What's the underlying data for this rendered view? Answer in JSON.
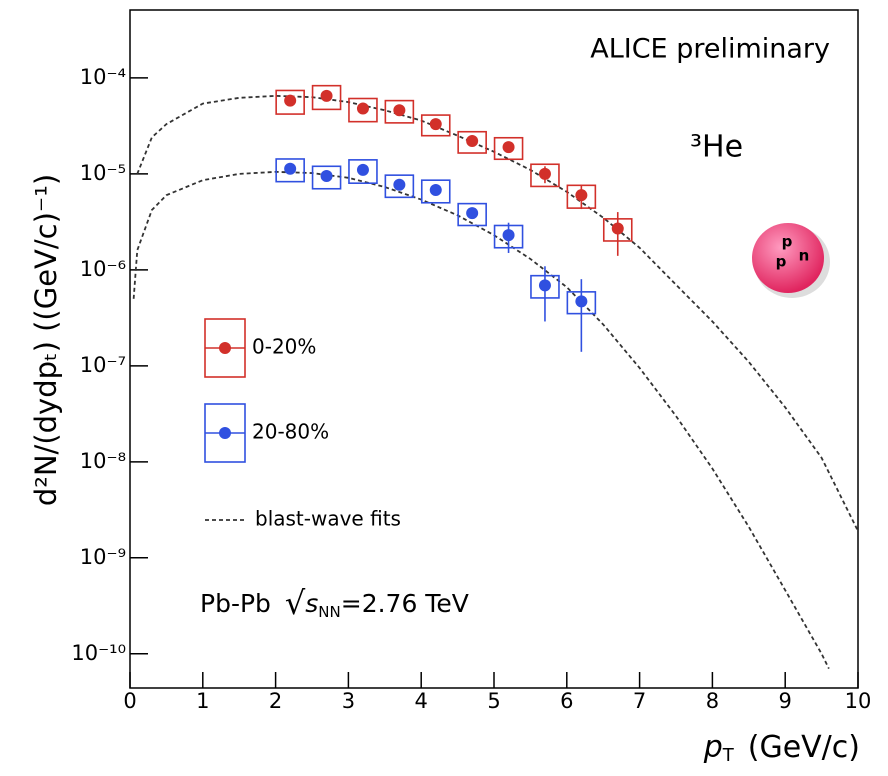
{
  "chart_data": {
    "type": "scatter",
    "annotation": "ALICE preliminary",
    "particle": "³He",
    "collision": {
      "system": "Pb-Pb",
      "sqrt_symbol": "√",
      "s": "s",
      "subscript": "NN",
      "energy": "=2.76 TeV"
    },
    "nucleus_labels": [
      "p",
      "p",
      "n"
    ],
    "x_label": {
      "main": "p",
      "sub": "T",
      "unit": "(GeV/c)"
    },
    "y_label": "d²N/(dydpₜ) ((GeV/c)⁻¹)",
    "log_y": true,
    "xlim": [
      0,
      10
    ],
    "xticks": [
      0,
      1,
      2,
      3,
      4,
      5,
      6,
      7,
      8,
      9,
      10
    ],
    "ylim": [
      4.4e-11,
      0.00051
    ],
    "yticks": [
      {
        "value": 1e-10,
        "label": "10⁻¹⁰"
      },
      {
        "value": 1e-09,
        "label": "10⁻⁹"
      },
      {
        "value": 1e-08,
        "label": "10⁻⁸"
      },
      {
        "value": 1e-07,
        "label": "10⁻⁷"
      },
      {
        "value": 1e-06,
        "label": "10⁻⁶"
      },
      {
        "value": 1e-05,
        "label": "10⁻⁵"
      },
      {
        "value": 0.0001,
        "label": "10⁻⁴"
      }
    ],
    "series": [
      {
        "name": "0-20%",
        "color": "#d2302a",
        "x": [
          2.2,
          2.7,
          3.2,
          3.7,
          4.2,
          4.7,
          5.2,
          5.7,
          6.2,
          6.7
        ],
        "values": [
          5.8e-05,
          6.5e-05,
          4.8e-05,
          4.6e-05,
          3.3e-05,
          2.2e-05,
          1.9e-05,
          1e-05,
          6e-06,
          2.7e-06
        ],
        "errors": [
          3e-06,
          3e-06,
          2.5e-06,
          2.5e-06,
          2e-06,
          1.5e-06,
          1.3e-06,
          2e-06,
          1.7e-06,
          1.3e-06
        ],
        "sys_errors": [
          1.6e-05,
          1.8e-05,
          1.3e-05,
          1.2e-05,
          8e-06,
          5.5e-06,
          4.8e-06,
          2.6e-06,
          1.6e-06,
          7e-07
        ]
      },
      {
        "name": "20-80%",
        "color": "#3050e0",
        "x": [
          2.2,
          2.7,
          3.2,
          3.7,
          4.2,
          4.7,
          5.2,
          5.7,
          6.2
        ],
        "values": [
          1.13e-05,
          9.5e-06,
          1.1e-05,
          7.7e-06,
          6.8e-06,
          3.9e-06,
          2.3e-06,
          6.9e-07,
          4.7e-07
        ],
        "errors": [
          6e-07,
          5e-07,
          6e-07,
          4e-07,
          4e-07,
          3e-07,
          8e-07,
          4e-07,
          3.3e-07
        ],
        "sys_errors": [
          3e-06,
          2.5e-06,
          3e-06,
          2e-06,
          1.8e-06,
          1e-06,
          6e-07,
          1.8e-07,
          1.2e-07
        ]
      }
    ],
    "fits": {
      "name": "blast-wave fits",
      "color": "#333333",
      "curves": [
        {
          "x": [
            0.1,
            0.3,
            0.5,
            1,
            1.5,
            2,
            2.5,
            3,
            3.5,
            4,
            4.5,
            5,
            5.5,
            6,
            6.5,
            7,
            7.5,
            8,
            8.5,
            9,
            9.5,
            10
          ],
          "values": [
            1e-05,
            2.4e-05,
            3.3e-05,
            5.4e-05,
            6.2e-05,
            6.5e-05,
            6.3e-05,
            5.6e-05,
            4.6e-05,
            3.6e-05,
            2.5e-05,
            1.7e-05,
            1.1e-05,
            6.5e-06,
            3.5e-06,
            1.7e-06,
            7e-07,
            2.9e-07,
            1.1e-07,
            3.7e-08,
            1.1e-08,
            1.9e-09
          ]
        },
        {
          "x": [
            0.05,
            0.1,
            0.3,
            0.5,
            1,
            1.5,
            2,
            2.5,
            3,
            3.5,
            4,
            4.5,
            5,
            5.5,
            6,
            6.5,
            7,
            7.5,
            8,
            8.5,
            9,
            9.5,
            9.6
          ],
          "values": [
            5e-07,
            1.6e-06,
            4.2e-06,
            6e-06,
            8.6e-06,
            1e-05,
            1.05e-05,
            1.02e-05,
            9.1e-06,
            7.3e-06,
            5.4e-06,
            3.7e-06,
            2.3e-06,
            1.3e-06,
            6.6e-07,
            2.7e-07,
            9.5e-08,
            3e-08,
            8.5e-09,
            2.1e-09,
            4.6e-10,
            1e-10,
            7e-11
          ]
        }
      ]
    }
  }
}
